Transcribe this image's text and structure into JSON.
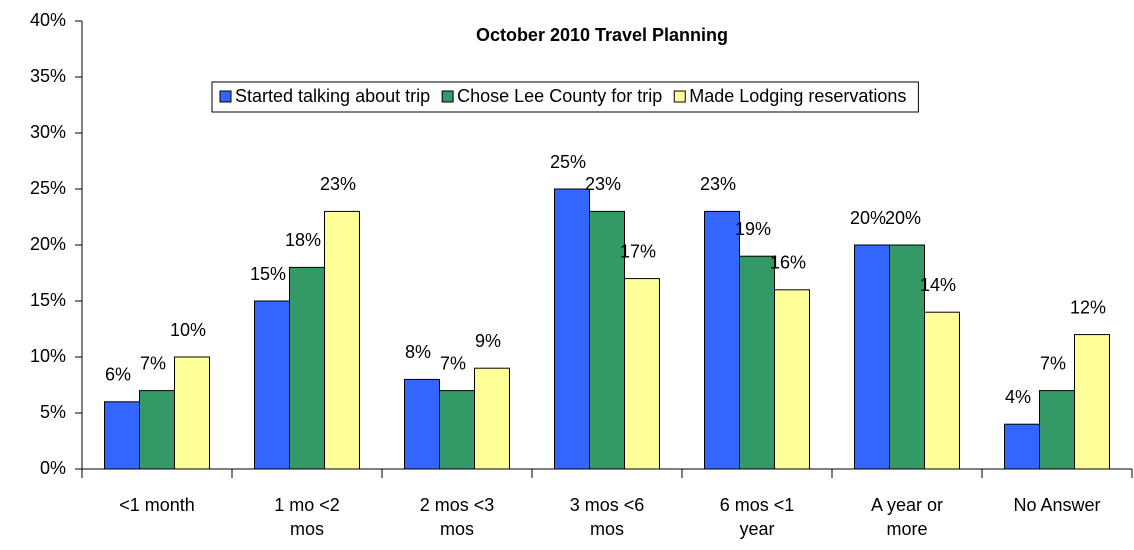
{
  "chart_data": {
    "type": "bar",
    "title": "October 2010 Travel Planning",
    "categories": [
      "<1 month",
      "1 mo <2 mos",
      "2 mos <3 mos",
      "3 mos <6 mos",
      "6 mos <1 year",
      "A year or more",
      "No Answer"
    ],
    "series": [
      {
        "name": "Started talking about trip",
        "color": "#3366ff",
        "values": [
          6,
          15,
          8,
          25,
          23,
          20,
          4
        ],
        "value_labels": [
          "6%",
          "15%",
          "8%",
          "25%",
          "23%",
          "20%",
          "4%"
        ]
      },
      {
        "name": "Chose Lee County for trip",
        "color": "#339966",
        "values": [
          7,
          18,
          7,
          23,
          19,
          20,
          7
        ],
        "value_labels": [
          "7%",
          "18%",
          "7%",
          "23%",
          "19%",
          "20%",
          "7%"
        ]
      },
      {
        "name": "Made Lodging reservations",
        "color": "#ffff99",
        "values": [
          10,
          23,
          9,
          17,
          16,
          14,
          12
        ],
        "value_labels": [
          "10%",
          "23%",
          "9%",
          "17%",
          "16%",
          "14%",
          "12%"
        ]
      }
    ],
    "ylim": [
      0,
      40
    ],
    "yticks": [
      {
        "value": 0,
        "label": "0%"
      },
      {
        "value": 5,
        "label": "5%"
      },
      {
        "value": 10,
        "label": "10%"
      },
      {
        "value": 15,
        "label": "15%"
      },
      {
        "value": 20,
        "label": "20%"
      },
      {
        "value": 25,
        "label": "25%"
      },
      {
        "value": 30,
        "label": "30%"
      },
      {
        "value": 35,
        "label": "35%"
      },
      {
        "value": 40,
        "label": "40%"
      }
    ],
    "legend": "top"
  }
}
